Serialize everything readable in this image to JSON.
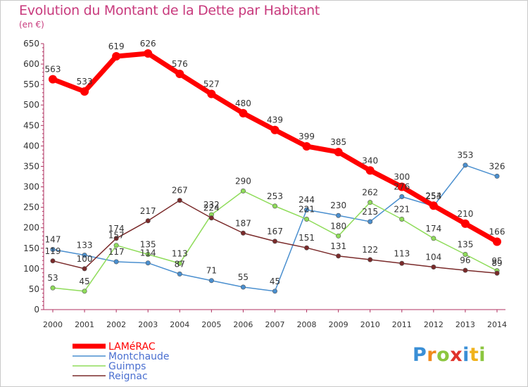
{
  "title": "Evolution du Montant de la Dette par Habitant",
  "subtitle": "(en €)",
  "logo": "Proxiti",
  "chart_data": {
    "type": "line",
    "x": [
      2000,
      2001,
      2002,
      2003,
      2004,
      2005,
      2006,
      2007,
      2008,
      2009,
      2010,
      2011,
      2012,
      2013,
      2014
    ],
    "ylim": [
      0,
      650
    ],
    "yticks": [
      0,
      50,
      100,
      150,
      200,
      250,
      300,
      350,
      400,
      450,
      500,
      550,
      600,
      650
    ],
    "grid": false,
    "legend_position": "bottom-left",
    "series": [
      {
        "name": "LAMéRAC",
        "color": "#ff0000",
        "values": [
          563,
          533,
          619,
          626,
          576,
          527,
          480,
          439,
          399,
          385,
          340,
          300,
          254,
          210,
          166
        ]
      },
      {
        "name": "Montchaude",
        "color": "#4a8fcf",
        "values": [
          147,
          133,
          117,
          114,
          87,
          71,
          55,
          45,
          244,
          230,
          215,
          276,
          253,
          353,
          326
        ]
      },
      {
        "name": "Guimps",
        "color": "#8fdc5a",
        "values": [
          53,
          45,
          157,
          135,
          113,
          232,
          290,
          253,
          221,
          180,
          262,
          221,
          174,
          135,
          95
        ]
      },
      {
        "name": "Reignac",
        "color": "#7a2a2a",
        "values": [
          119,
          100,
          174,
          217,
          267,
          224,
          187,
          167,
          151,
          131,
          122,
          113,
          104,
          96,
          89
        ]
      }
    ]
  }
}
